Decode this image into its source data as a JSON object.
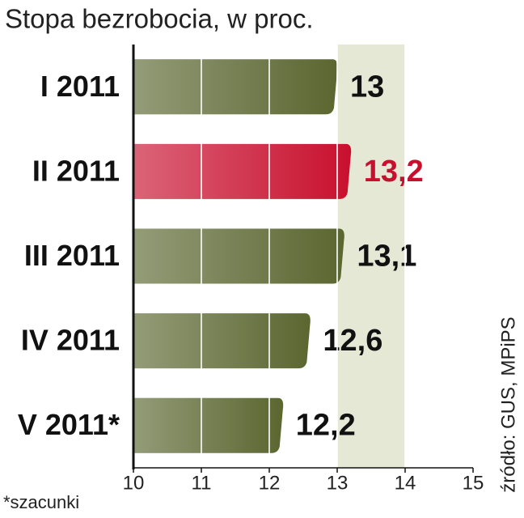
{
  "chart_data": {
    "type": "hbar",
    "title": "Stopa bezrobocia, w proc.",
    "categories": [
      "I 2011",
      "II 2011",
      "III 2011",
      "IV 2011",
      "V 2011*"
    ],
    "values": [
      13,
      13.2,
      13.1,
      12.6,
      12.2
    ],
    "value_labels": [
      "13",
      "13,2",
      "13,1",
      "12,6",
      "12,2"
    ],
    "colors": [
      "#5b6630",
      "#c8102e",
      "#5b6630",
      "#5b6630",
      "#5b6630"
    ],
    "value_label_colors": [
      "#111111",
      "#c8102e",
      "#111111",
      "#111111",
      "#111111"
    ],
    "xlim": [
      10,
      15
    ],
    "xticks": [
      10,
      11,
      12,
      13,
      14,
      15
    ],
    "band": [
      13,
      14
    ],
    "grid": true,
    "footnote": "*szacunki",
    "source": "źródło: GUS,  MPiPS"
  }
}
